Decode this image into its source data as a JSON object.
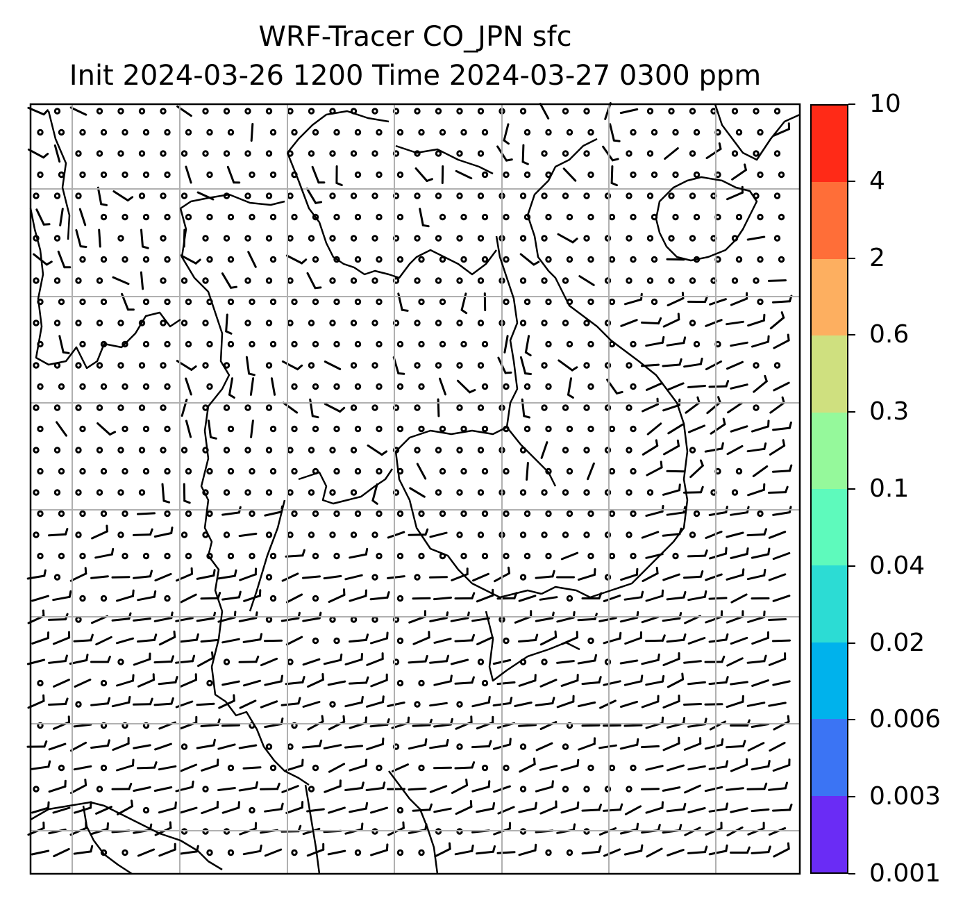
{
  "title": {
    "line1": "WRF-Tracer CO_JPN sfc",
    "line2": "Init 2024-03-26 1200 Time 2024-03-27 0300 ppm"
  },
  "map": {
    "field": "CO_JPN tracer concentration at surface (all values below lowest contour level)",
    "wind_barbs": true,
    "coastlines": true,
    "gridlines": true,
    "grid_color": "#b0b0b0"
  },
  "colorbar": {
    "unit": "ppm",
    "levels": [
      "0.001",
      "0.003",
      "0.006",
      "0.02",
      "0.04",
      "0.1",
      "0.3",
      "0.6",
      "2",
      "4",
      "10"
    ],
    "colors": [
      "#6a2cf5",
      "#3b74f4",
      "#00b2ec",
      "#2cdcd4",
      "#5efabc",
      "#95f99b",
      "#cfe07f",
      "#fdaf60",
      "#ff6e38",
      "#ff2a17"
    ]
  }
}
